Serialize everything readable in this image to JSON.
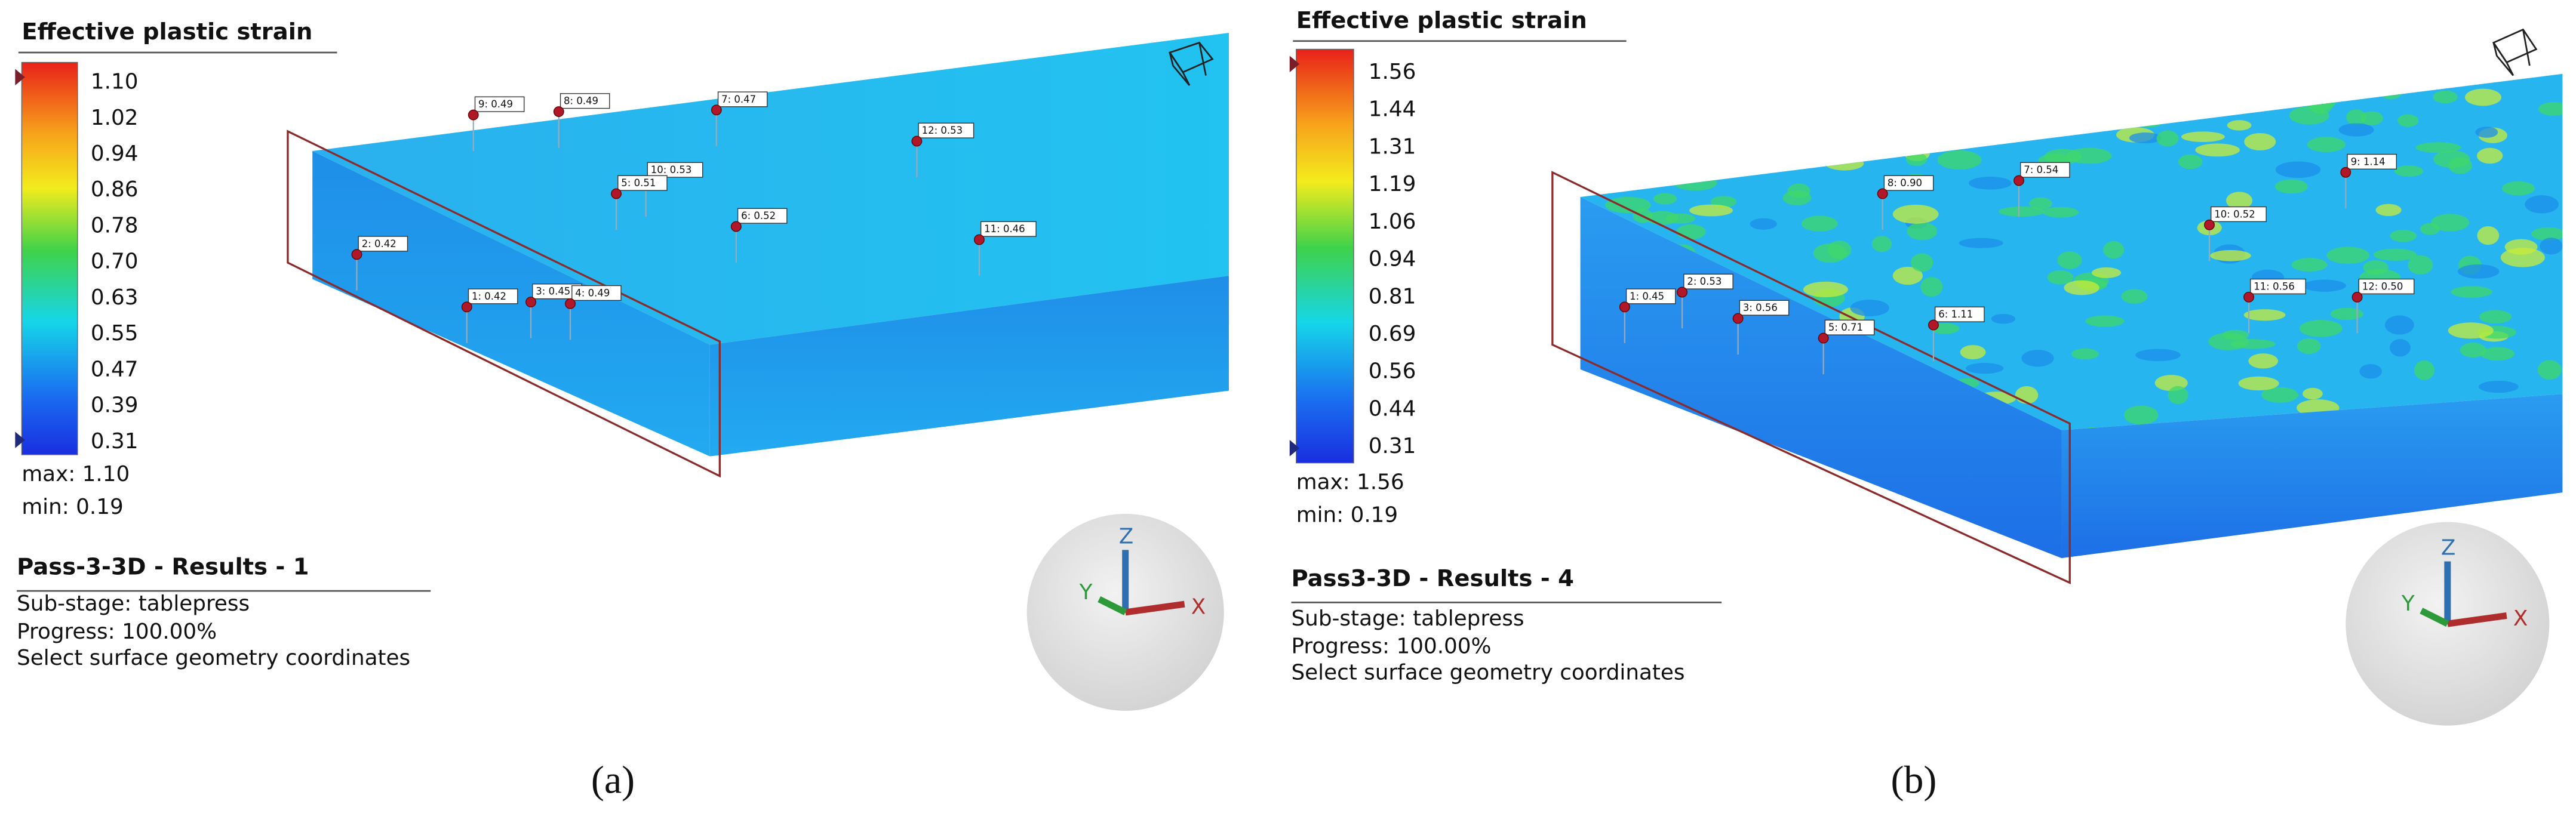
{
  "panels": [
    {
      "legend": {
        "title": "Effective plastic strain",
        "ticks": [
          "1.10",
          "1.02",
          "0.94",
          "0.86",
          "0.78",
          "0.70",
          "0.63",
          "0.55",
          "0.47",
          "0.39",
          "0.31"
        ],
        "max": "max: 1.10",
        "min": "min:  0.19"
      },
      "results": {
        "title": "Pass-3-3D - Results - 1",
        "lines": [
          "Sub-stage: tablepress",
          "Progress: 100.00%",
          "Select surface geometry coordinates"
        ]
      },
      "probes": [
        "9: 0.49",
        "8: 0.49",
        "7: 0.47",
        "12: 0.53",
        "10: 0.53",
        "5: 0.51",
        "6: 0.52",
        "11: 0.46",
        "2: 0.42",
        "1: 0.42",
        "3: 0.45",
        "4: 0.49"
      ],
      "axes": {
        "x": "X",
        "y": "Y",
        "z": "Z"
      },
      "caption": "(a)"
    },
    {
      "legend": {
        "title": "Effective plastic strain",
        "ticks": [
          "1.56",
          "1.44",
          "1.31",
          "1.19",
          "1.06",
          "0.94",
          "0.81",
          "0.69",
          "0.56",
          "0.44",
          "0.31"
        ],
        "max": "max: 1.56",
        "min": "min:  0.19"
      },
      "results": {
        "title": "Pass3-3D - Results - 4",
        "lines": [
          "Sub-stage: tablepress",
          "Progress: 100.00%",
          "Select surface geometry coordinates"
        ]
      },
      "probes": [
        "1: 0.45",
        "2: 0.53",
        "3: 0.56",
        "5: 0.71",
        "6: 1.11",
        "8: 0.90",
        "7: 0.54",
        "9: 1.14",
        "10: 0.52",
        "11: 0.56",
        "12: 0.50"
      ],
      "axes": {
        "x": "X",
        "y": "Y",
        "z": "Z"
      },
      "caption": "(b)"
    }
  ]
}
